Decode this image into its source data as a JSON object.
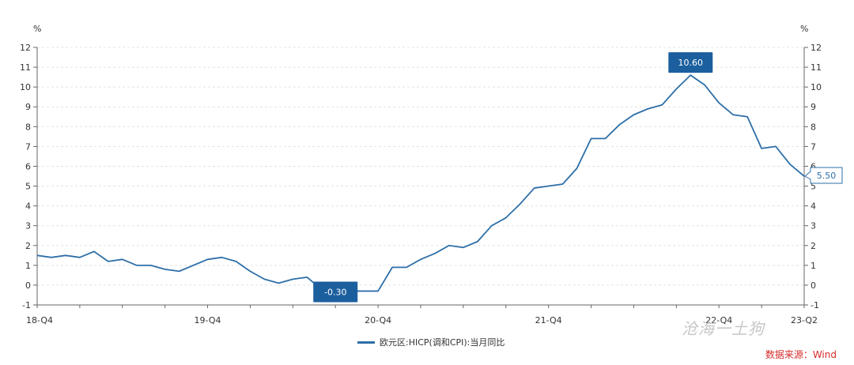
{
  "chart_data": {
    "type": "line",
    "ylabel_left": "%",
    "ylabel_right": "%",
    "ylim": [
      -1,
      12
    ],
    "yticks": [
      -1,
      0,
      1,
      2,
      3,
      4,
      5,
      6,
      7,
      8,
      9,
      10,
      11,
      12
    ],
    "xtick_labels": [
      "18-Q4",
      "19-Q4",
      "20-Q4",
      "21-Q4",
      "22-Q4",
      "23-Q2"
    ],
    "xtick_index": [
      0,
      12,
      24,
      36,
      48,
      54
    ],
    "series": [
      {
        "name": "欧元区:HICP(调和CPI):当月同比",
        "color": "#2e6fa8",
        "values": [
          1.5,
          1.4,
          1.5,
          1.4,
          1.7,
          1.2,
          1.3,
          1.0,
          1.0,
          0.8,
          0.7,
          1.0,
          1.3,
          1.4,
          1.2,
          0.7,
          0.3,
          0.1,
          0.3,
          0.4,
          -0.2,
          -0.3,
          -0.3,
          -0.3,
          -0.3,
          0.9,
          0.9,
          1.3,
          1.6,
          2.0,
          1.9,
          2.2,
          3.0,
          3.4,
          4.1,
          4.9,
          5.0,
          5.1,
          5.9,
          7.4,
          7.4,
          8.1,
          8.6,
          8.9,
          9.1,
          9.9,
          10.6,
          10.1,
          9.2,
          8.6,
          8.5,
          6.9,
          7.0,
          6.1,
          5.5
        ]
      }
    ],
    "annotations": [
      {
        "index": 21,
        "label": "-0.30"
      },
      {
        "index": 46,
        "label": "10.60"
      },
      {
        "index": 54,
        "label": "5.50"
      }
    ]
  },
  "legend_label": "欧元区:HICP(调和CPI):当月同比",
  "source": "数据来源：Wind",
  "source_color": "#d62b2b",
  "watermark": "沧海一土狗"
}
